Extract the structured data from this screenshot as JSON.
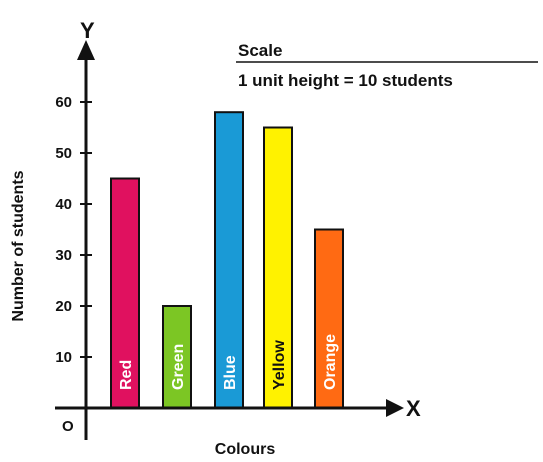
{
  "chart_data": {
    "type": "bar",
    "categories": [
      "Red",
      "Green",
      "Blue",
      "Yellow",
      "Orange"
    ],
    "values": [
      45,
      20,
      58,
      55,
      35
    ],
    "colors": [
      "#e0115f",
      "#7cc624",
      "#1a9ad6",
      "#fff200",
      "#ff6a13"
    ],
    "xlabel": "Colours",
    "ylabel": "Number of students",
    "yticks": [
      10,
      20,
      30,
      40,
      50,
      60
    ],
    "ylim": [
      0,
      70
    ],
    "x_axis_letter": "X",
    "y_axis_letter": "Y",
    "origin_label": "O",
    "scale": {
      "title": "Scale",
      "text": "1 unit height = 10 students"
    }
  }
}
